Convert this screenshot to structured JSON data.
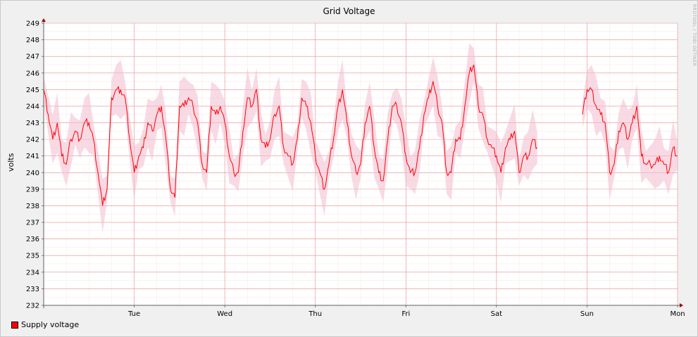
{
  "chart_data": {
    "type": "line",
    "title": "Grid Voltage",
    "ylabel": "volts",
    "watermark": "RRDTOOL / TOBI OETIKER",
    "ylim": [
      232,
      249
    ],
    "y_ticks": [
      232,
      233,
      234,
      235,
      236,
      237,
      238,
      239,
      240,
      241,
      242,
      243,
      244,
      245,
      246,
      247,
      248,
      249
    ],
    "x_day_labels": [
      "Tue",
      "Wed",
      "Thu",
      "Fri",
      "Sat",
      "Sun",
      "Mon"
    ],
    "x_range_days": [
      0,
      7
    ],
    "x_day_positions": [
      1,
      2,
      3,
      4,
      5,
      6,
      7
    ],
    "grid": true,
    "legend_position": "bottom-left",
    "colors": {
      "line": "#ff0000",
      "band": "#f2bcd0",
      "grid_minor": "#f0c0c0",
      "grid_major": "#e88a8a",
      "axis": "#606060"
    },
    "series": [
      {
        "name": "Supply voltage",
        "color": "#ff0000",
        "x": [
          0.0,
          0.05,
          0.1,
          0.15,
          0.2,
          0.25,
          0.3,
          0.35,
          0.4,
          0.45,
          0.5,
          0.55,
          0.6,
          0.65,
          0.7,
          0.75,
          0.8,
          0.85,
          0.9,
          0.95,
          1.0,
          1.05,
          1.1,
          1.15,
          1.2,
          1.25,
          1.3,
          1.35,
          1.4,
          1.45,
          1.5,
          1.55,
          1.6,
          1.65,
          1.7,
          1.75,
          1.8,
          1.85,
          1.9,
          1.95,
          2.0,
          2.05,
          2.1,
          2.15,
          2.2,
          2.25,
          2.3,
          2.35,
          2.4,
          2.45,
          2.5,
          2.55,
          2.6,
          2.65,
          2.7,
          2.75,
          2.8,
          2.85,
          2.9,
          2.95,
          3.0,
          3.05,
          3.1,
          3.15,
          3.2,
          3.25,
          3.3,
          3.35,
          3.4,
          3.45,
          3.5,
          3.55,
          3.6,
          3.65,
          3.7,
          3.75,
          3.8,
          3.85,
          3.9,
          3.95,
          4.0,
          4.05,
          4.1,
          4.15,
          4.2,
          4.25,
          4.3,
          4.35,
          4.4,
          4.45,
          4.5,
          4.55,
          4.6,
          4.65,
          4.7,
          4.75,
          4.8,
          4.85,
          4.9,
          4.95,
          5.0,
          5.05,
          5.1,
          5.15,
          5.2,
          5.25,
          5.3,
          5.35,
          5.4,
          5.45
        ],
        "values": [
          245,
          243.5,
          242,
          243,
          241,
          240.5,
          242,
          242.5,
          242,
          243,
          243,
          242,
          240,
          238,
          239,
          244.5,
          245,
          245,
          244.5,
          242,
          240,
          241,
          241.5,
          243,
          242.5,
          243.5,
          244,
          242,
          239,
          238.5,
          244,
          244,
          244.5,
          244,
          243,
          240.5,
          240,
          244,
          243.5,
          244,
          243,
          241,
          240,
          240,
          242.5,
          244.5,
          244,
          245,
          242,
          241.5,
          242,
          243.5,
          244,
          241.5,
          241,
          240.5,
          242,
          244.5,
          244,
          243,
          241,
          240,
          239,
          240.5,
          242,
          244,
          245,
          243,
          241,
          240,
          240.5,
          243,
          244,
          241.5,
          240,
          239.5,
          242,
          244,
          244,
          243,
          241,
          240,
          240,
          241.5,
          243.5,
          244.5,
          245.5,
          244,
          243,
          240,
          240,
          242,
          242,
          244,
          246,
          246.5,
          244,
          243.5,
          242,
          241.5,
          241,
          240,
          241.5,
          242,
          242.5,
          240,
          241,
          241,
          242,
          241.5
        ],
        "gap": [
          5.45,
          5.95
        ]
      },
      {
        "name": "",
        "x": [
          5.95,
          6.0,
          6.05,
          6.1,
          6.15,
          6.2,
          6.25,
          6.3,
          6.35,
          6.4,
          6.45,
          6.5,
          6.55,
          6.6,
          6.65,
          6.7,
          6.75,
          6.8,
          6.85,
          6.9,
          6.95,
          7.0
        ],
        "values": [
          243.5,
          245,
          245,
          244,
          243.5,
          243,
          240,
          240.5,
          242.5,
          243,
          242,
          243,
          244,
          241,
          240.5,
          240.5,
          240.5,
          241,
          240.5,
          240,
          241.5,
          241
        ],
        "color": "#ff0000"
      }
    ]
  },
  "legend": {
    "label": "Supply voltage"
  }
}
